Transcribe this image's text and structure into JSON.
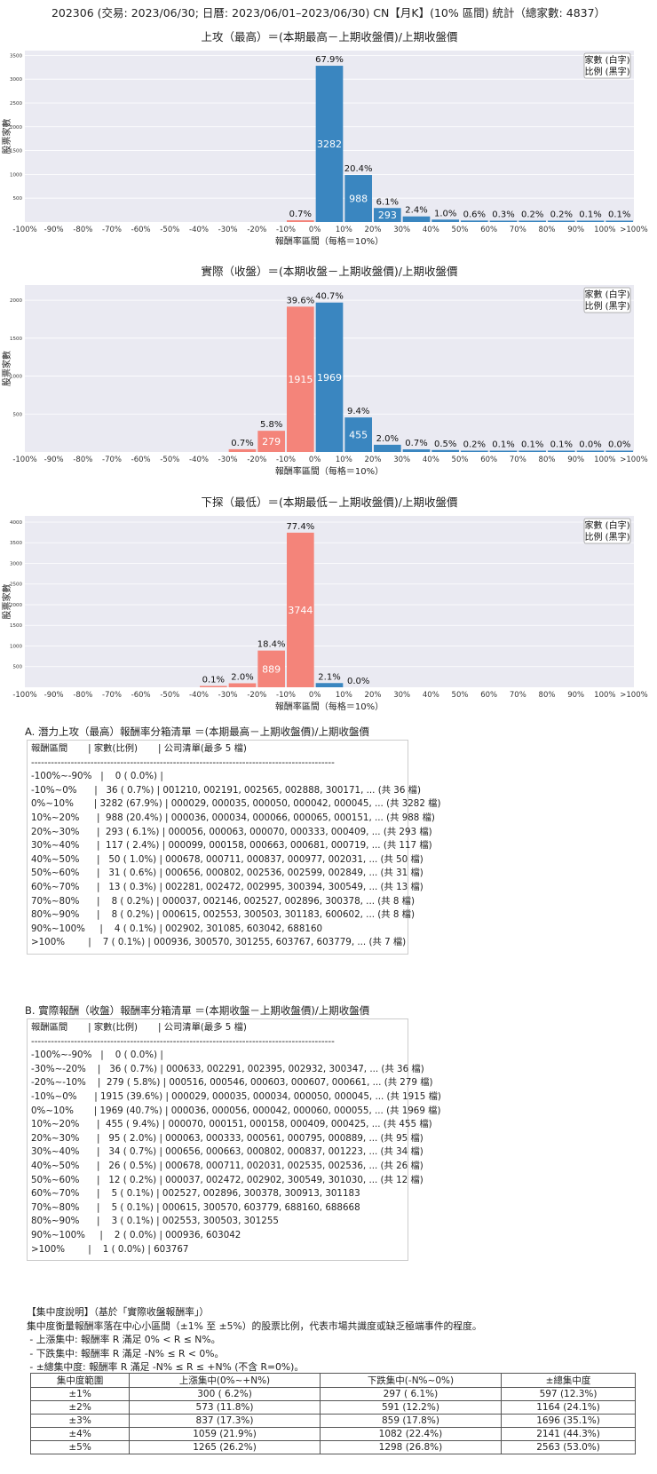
{
  "page_title": "202306 (交易: 2023/06/30; 日曆: 2023/06/01–2023/06/30) CN【月K】(10% 區間) 統計（總家數: 4837）",
  "legend": [
    "家數 (白字)",
    "比例 (黑字)"
  ],
  "colors": {
    "up": "#3a86c0",
    "down": "#f4847a",
    "plot_bg": "#eaeaf2"
  },
  "chart_data": [
    {
      "type": "bar",
      "title": "上攻（最高）＝(本期最高－上期收盤價)/上期收盤價",
      "xlabel": "報酬率區間（每格＝10%）",
      "ylabel": "股票家數",
      "ylim": [
        0,
        3600
      ],
      "yticks": [
        500,
        1000,
        1500,
        2000,
        2500,
        3000,
        3500
      ],
      "bars": [
        {
          "bin": "-10%~0%",
          "value": 36,
          "pct": "0.7%",
          "color": "down"
        },
        {
          "bin": "0%~10%",
          "value": 3282,
          "pct": "67.9%",
          "color": "up"
        },
        {
          "bin": "10%~20%",
          "value": 988,
          "pct": "20.4%",
          "color": "up"
        },
        {
          "bin": "20%~30%",
          "value": 293,
          "pct": "6.1%",
          "color": "up"
        },
        {
          "bin": "30%~40%",
          "value": 117,
          "pct": "2.4%",
          "color": "up"
        },
        {
          "bin": "40%~50%",
          "value": 50,
          "pct": "1.0%",
          "color": "up"
        },
        {
          "bin": "50%~60%",
          "value": 31,
          "pct": "0.6%",
          "color": "up"
        },
        {
          "bin": "60%~70%",
          "value": 13,
          "pct": "0.3%",
          "color": "up"
        },
        {
          "bin": "70%~80%",
          "value": 8,
          "pct": "0.2%",
          "color": "up"
        },
        {
          "bin": "80%~90%",
          "value": 8,
          "pct": "0.2%",
          "color": "up"
        },
        {
          "bin": "90%~100%",
          "value": 4,
          "pct": "0.1%",
          "color": "up"
        },
        {
          "bin": ">100%",
          "value": 7,
          "pct": "0.1%",
          "color": "up"
        }
      ]
    },
    {
      "type": "bar",
      "title": "實際（收盤）＝(本期收盤－上期收盤價)/上期收盤價",
      "xlabel": "報酬率區間（每格＝10%）",
      "ylabel": "股票家數",
      "ylim": [
        0,
        2200
      ],
      "yticks": [
        500,
        1000,
        1500,
        2000
      ],
      "bars": [
        {
          "bin": "-30%~-20%",
          "value": 36,
          "pct": "0.7%",
          "color": "down"
        },
        {
          "bin": "-20%~-10%",
          "value": 279,
          "pct": "5.8%",
          "color": "down"
        },
        {
          "bin": "-10%~0%",
          "value": 1915,
          "pct": "39.6%",
          "color": "down"
        },
        {
          "bin": "0%~10%",
          "value": 1969,
          "pct": "40.7%",
          "color": "up"
        },
        {
          "bin": "10%~20%",
          "value": 455,
          "pct": "9.4%",
          "color": "up"
        },
        {
          "bin": "20%~30%",
          "value": 95,
          "pct": "2.0%",
          "color": "up"
        },
        {
          "bin": "30%~40%",
          "value": 34,
          "pct": "0.7%",
          "color": "up"
        },
        {
          "bin": "40%~50%",
          "value": 26,
          "pct": "0.5%",
          "color": "up"
        },
        {
          "bin": "50%~60%",
          "value": 12,
          "pct": "0.2%",
          "color": "up"
        },
        {
          "bin": "60%~70%",
          "value": 5,
          "pct": "0.1%",
          "color": "up"
        },
        {
          "bin": "70%~80%",
          "value": 5,
          "pct": "0.1%",
          "color": "up"
        },
        {
          "bin": "80%~90%",
          "value": 3,
          "pct": "0.1%",
          "color": "up"
        },
        {
          "bin": "90%~100%",
          "value": 2,
          "pct": "0.0%",
          "color": "up"
        },
        {
          "bin": ">100%",
          "value": 1,
          "pct": "0.0%",
          "color": "up"
        }
      ]
    },
    {
      "type": "bar",
      "title": "下探（最低）＝(本期最低－上期收盤價)/上期收盤價",
      "xlabel": "報酬率區間（每格＝10%）",
      "ylabel": "股票家數",
      "ylim": [
        0,
        4150
      ],
      "yticks": [
        500,
        1000,
        1500,
        2000,
        2500,
        3000,
        3500,
        4000
      ],
      "bars": [
        {
          "bin": "-40%~-30%",
          "value": 5,
          "pct": "0.1%",
          "color": "down"
        },
        {
          "bin": "-30%~-20%",
          "value": 97,
          "pct": "2.0%",
          "color": "down"
        },
        {
          "bin": "-20%~-10%",
          "value": 889,
          "pct": "18.4%",
          "color": "down"
        },
        {
          "bin": "-10%~0%",
          "value": 3744,
          "pct": "77.4%",
          "color": "down"
        },
        {
          "bin": "0%~10%",
          "value": 102,
          "pct": "2.1%",
          "color": "up"
        },
        {
          "bin": "10%~20%",
          "value": 0,
          "pct": "0.0%",
          "color": "up"
        }
      ]
    }
  ],
  "x_tick_labels": [
    "-100%",
    "-90%",
    "-80%",
    "-70%",
    "-60%",
    "-50%",
    "-40%",
    "-30%",
    "-20%",
    "-10%",
    "0%",
    "10%",
    "20%",
    "30%",
    "40%",
    "50%",
    "60%",
    "70%",
    "80%",
    "90%",
    "100%",
    ">100%"
  ],
  "list_a": {
    "title": "A. 潛力上攻（最高）報酬率分箱清單 ＝(本期最高－上期收盤價)/上期收盤價",
    "header": "報酬區間       | 家數(比例)       | 公司清單(最多 5 檔)",
    "separator": "--------------------------------------------------------------------------------------------",
    "rows": [
      "-100%~-90%   |    0 ( 0.0%) |",
      "-10%~0%      |   36 ( 0.7%) | 001210, 002191, 002565, 002888, 300171, ... (共 36 檔)",
      "0%~10%       | 3282 (67.9%) | 000029, 000035, 000050, 000042, 000045, ... (共 3282 檔)",
      "10%~20%      |  988 (20.4%) | 000036, 000034, 000066, 000065, 000151, ... (共 988 檔)",
      "20%~30%      |  293 ( 6.1%) | 000056, 000063, 000070, 000333, 000409, ... (共 293 檔)",
      "30%~40%      |  117 ( 2.4%) | 000099, 000158, 000663, 000681, 000719, ... (共 117 檔)",
      "40%~50%      |   50 ( 1.0%) | 000678, 000711, 000837, 000977, 002031, ... (共 50 檔)",
      "50%~60%      |   31 ( 0.6%) | 000656, 000802, 002536, 002599, 002849, ... (共 31 檔)",
      "60%~70%      |   13 ( 0.3%) | 002281, 002472, 002995, 300394, 300549, ... (共 13 檔)",
      "70%~80%      |    8 ( 0.2%) | 000037, 002146, 002527, 002896, 300378, ... (共 8 檔)",
      "80%~90%      |    8 ( 0.2%) | 000615, 002553, 300503, 301183, 600602, ... (共 8 檔)",
      "90%~100%     |    4 ( 0.1%) | 002902, 301085, 603042, 688160",
      ">100%        |    7 ( 0.1%) | 000936, 300570, 301255, 603767, 603779, ... (共 7 檔)"
    ]
  },
  "list_b": {
    "title": "B. 實際報酬（收盤）報酬率分箱清單 ＝(本期收盤－上期收盤價)/上期收盤價",
    "header": "報酬區間       | 家數(比例)       | 公司清單(最多 5 檔)",
    "separator": "--------------------------------------------------------------------------------------------",
    "rows": [
      "-100%~-90%   |    0 ( 0.0%) |",
      "-30%~-20%    |   36 ( 0.7%) | 000633, 002291, 002395, 002932, 300347, ... (共 36 檔)",
      "-20%~-10%    |  279 ( 5.8%) | 000516, 000546, 000603, 000607, 000661, ... (共 279 檔)",
      "-10%~0%      | 1915 (39.6%) | 000029, 000035, 000034, 000050, 000045, ... (共 1915 檔)",
      "0%~10%       | 1969 (40.7%) | 000036, 000056, 000042, 000060, 000055, ... (共 1969 檔)",
      "10%~20%      |  455 ( 9.4%) | 000070, 000151, 000158, 000409, 000425, ... (共 455 檔)",
      "20%~30%      |   95 ( 2.0%) | 000063, 000333, 000561, 000795, 000889, ... (共 95 檔)",
      "30%~40%      |   34 ( 0.7%) | 000656, 000663, 000802, 000837, 001223, ... (共 34 檔)",
      "40%~50%      |   26 ( 0.5%) | 000678, 000711, 002031, 002535, 002536, ... (共 26 檔)",
      "50%~60%      |   12 ( 0.2%) | 000037, 002472, 002902, 300549, 301030, ... (共 12 檔)",
      "60%~70%      |    5 ( 0.1%) | 002527, 002896, 300378, 300913, 301183",
      "70%~80%      |    5 ( 0.1%) | 000615, 300570, 603779, 688160, 688668",
      "80%~90%      |    3 ( 0.1%) | 002553, 300503, 301255",
      "90%~100%     |    2 ( 0.0%) | 000936, 603042",
      ">100%        |    1 ( 0.0%) | 603767"
    ]
  },
  "concentration": {
    "lines": [
      "【集中度說明】（基於「實際收盤報酬率」）",
      "集中度衡量報酬率落在中心小區間（±1% 至 ±5%）的股票比例，代表市場共識度或缺乏極端事件的程度。",
      " - 上漲集中: 報酬率 R 滿足 0% < R ≤ N%。",
      " - 下跌集中: 報酬率 R 滿足 -N% ≤ R < 0%。",
      " - ±總集中度: 報酬率 R 滿足 -N% ≤ R ≤ +N% (不含 R=0%)。"
    ],
    "headers": [
      "集中度範圍",
      "上漲集中(0%~+N%)",
      "下跌集中(-N%~0%)",
      "±總集中度"
    ],
    "rows": [
      [
        "±1%",
        "300 ( 6.2%)",
        "297 ( 6.1%)",
        "597 (12.3%)"
      ],
      [
        "±2%",
        "573 (11.8%)",
        "591 (12.2%)",
        "1164 (24.1%)"
      ],
      [
        "±3%",
        "837 (17.3%)",
        "859 (17.8%)",
        "1696 (35.1%)"
      ],
      [
        "±4%",
        "1059 (21.9%)",
        "1082 (22.4%)",
        "2141 (44.3%)"
      ],
      [
        "±5%",
        "1265 (26.2%)",
        "1298 (26.8%)",
        "2563 (53.0%)"
      ]
    ]
  }
}
